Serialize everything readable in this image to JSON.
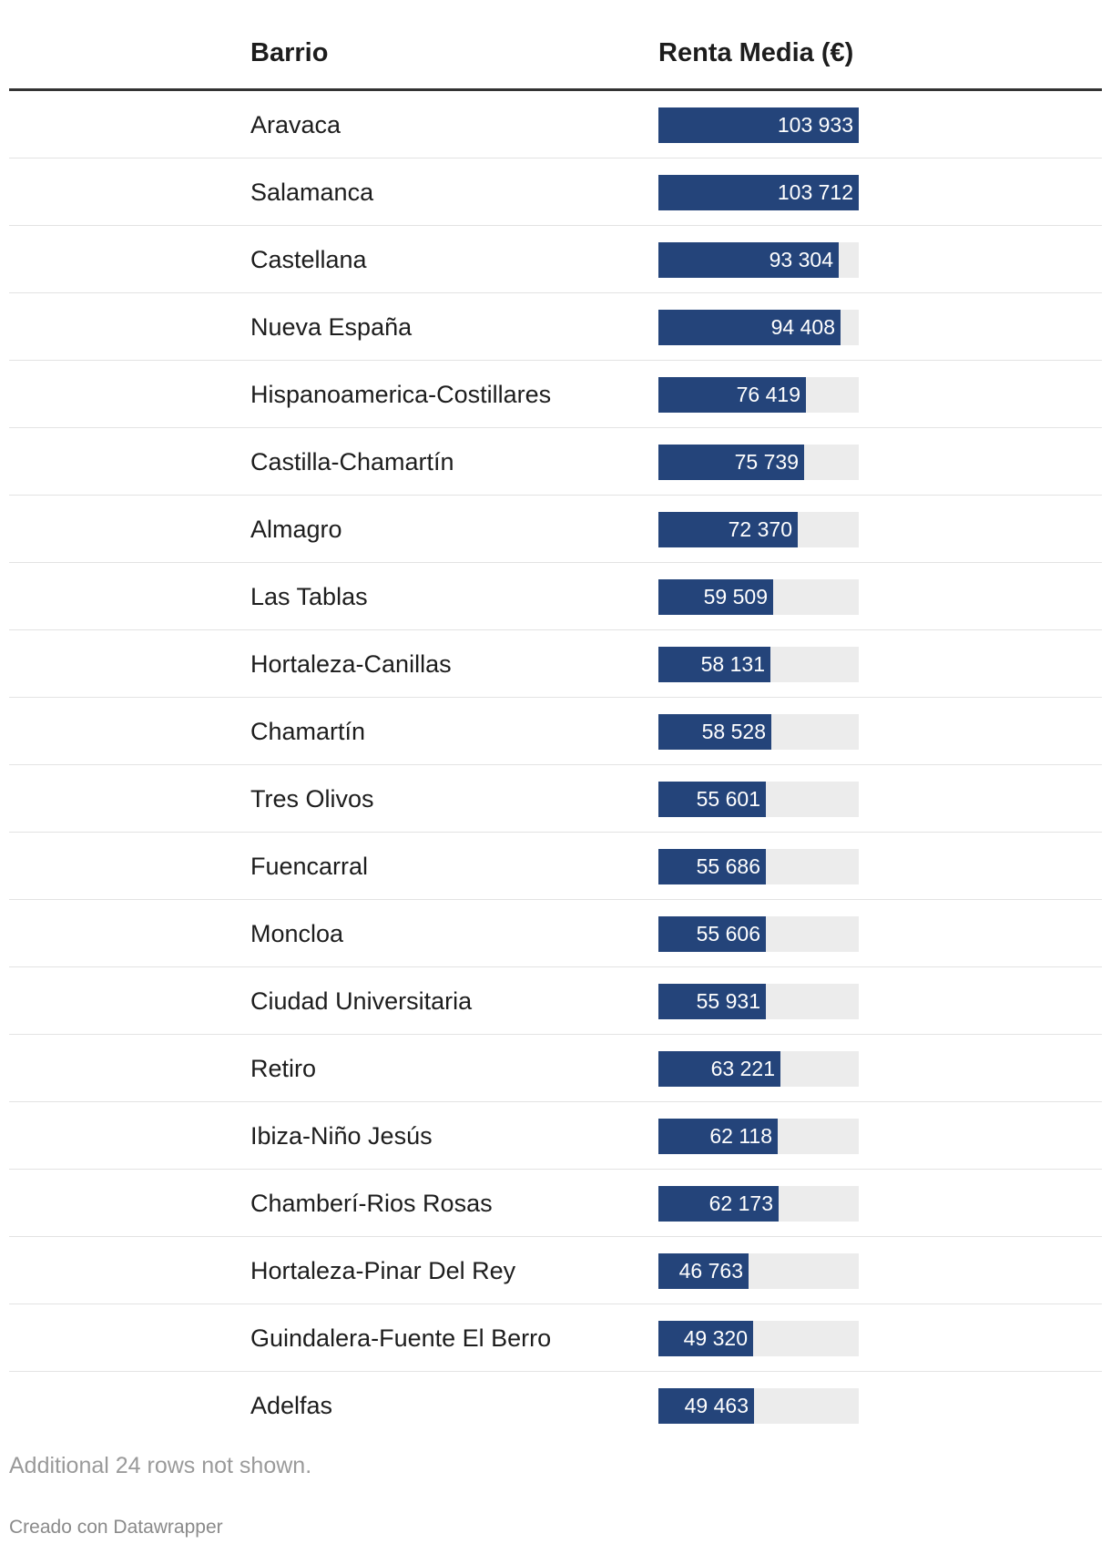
{
  "table": {
    "headers": {
      "barrio": "Barrio",
      "renta": "Renta Media (€)"
    }
  },
  "chart_data": {
    "type": "table",
    "columns": [
      "Barrio",
      "Renta Media (€)"
    ],
    "max": 103933,
    "colors": {
      "bar": "#24447a",
      "track": "#ececec",
      "value_text": "#ffffff"
    },
    "rows": [
      {
        "barrio": "Aravaca",
        "value": 103933,
        "label": "103 933"
      },
      {
        "barrio": "Salamanca",
        "value": 103712,
        "label": "103 712"
      },
      {
        "barrio": "Castellana",
        "value": 93304,
        "label": "93 304"
      },
      {
        "barrio": "Nueva España",
        "value": 94408,
        "label": "94 408"
      },
      {
        "barrio": "Hispanoamerica-Costillares",
        "value": 76419,
        "label": "76 419"
      },
      {
        "barrio": "Castilla-Chamartín",
        "value": 75739,
        "label": "75 739"
      },
      {
        "barrio": "Almagro",
        "value": 72370,
        "label": "72 370"
      },
      {
        "barrio": "Las Tablas",
        "value": 59509,
        "label": "59 509"
      },
      {
        "barrio": "Hortaleza-Canillas",
        "value": 58131,
        "label": "58 131"
      },
      {
        "barrio": "Chamartín",
        "value": 58528,
        "label": "58 528"
      },
      {
        "barrio": "Tres Olivos",
        "value": 55601,
        "label": "55 601"
      },
      {
        "barrio": "Fuencarral",
        "value": 55686,
        "label": "55 686"
      },
      {
        "barrio": "Moncloa",
        "value": 55606,
        "label": "55 606"
      },
      {
        "barrio": "Ciudad Universitaria",
        "value": 55931,
        "label": "55 931"
      },
      {
        "barrio": "Retiro",
        "value": 63221,
        "label": "63 221"
      },
      {
        "barrio": "Ibiza-Niño Jesús",
        "value": 62118,
        "label": "62 118"
      },
      {
        "barrio": "Chamberí-Rios Rosas",
        "value": 62173,
        "label": "62 173"
      },
      {
        "barrio": "Hortaleza-Pinar Del Rey",
        "value": 46763,
        "label": "46 763"
      },
      {
        "barrio": "Guindalera-Fuente El Berro",
        "value": 49320,
        "label": "49 320"
      },
      {
        "barrio": "Adelfas",
        "value": 49463,
        "label": "49 463"
      }
    ]
  },
  "footer": {
    "notes": "Additional 24 rows not shown.",
    "credit": "Creado con Datawrapper"
  }
}
